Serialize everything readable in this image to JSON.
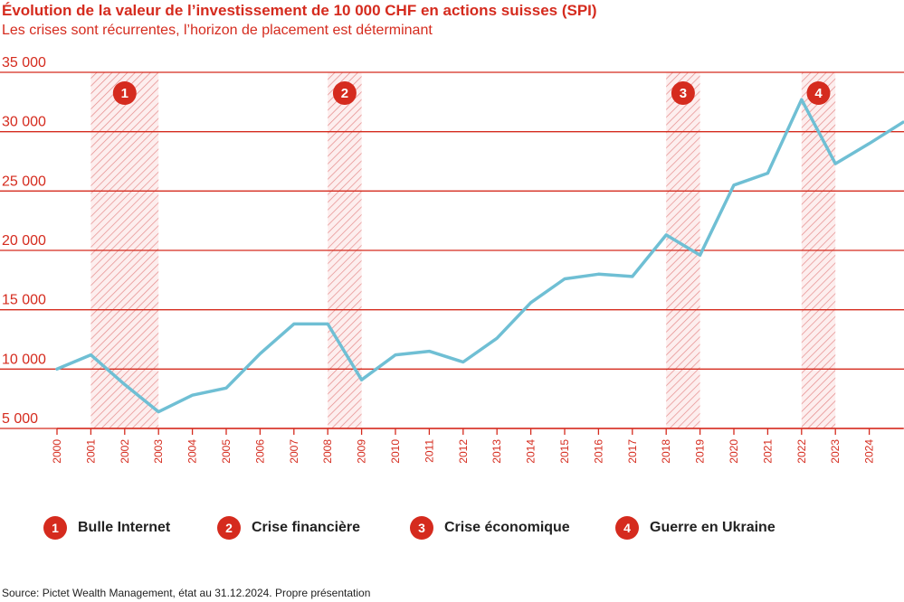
{
  "colors": {
    "accent": "#d52b1e",
    "line": "#6fbfd4",
    "hatch": "#e58a8a"
  },
  "chart_data": {
    "type": "line",
    "title": "Évolution de la valeur de l’investissement de 10 000 CHF en actions suisses (SPI)",
    "subtitle": "Les crises sont récurrentes, l’horizon de placement est déterminant",
    "x_ticks": [
      "2000",
      "2001",
      "2002",
      "2003",
      "2004",
      "2005",
      "2006",
      "2007",
      "2008",
      "2009",
      "2010",
      "2011",
      "2012",
      "2013",
      "2014",
      "2015",
      "2016",
      "2017",
      "2018",
      "2019",
      "2020",
      "2021",
      "2022",
      "2023",
      "2024"
    ],
    "y_ticks": [
      "5 000",
      "10 000",
      "15 000",
      "20 000",
      "25 000",
      "30 000",
      "35 000"
    ],
    "y_tick_values": [
      5000,
      10000,
      15000,
      20000,
      25000,
      30000,
      35000
    ],
    "ylim": [
      5000,
      35000
    ],
    "xlim": [
      2000,
      2025
    ],
    "grid": true,
    "series": [
      {
        "points": [
          [
            2000.0,
            10000
          ],
          [
            2001.0,
            11200
          ],
          [
            2002.0,
            8700
          ],
          [
            2003.0,
            6400
          ],
          [
            2004.0,
            7800
          ],
          [
            2005.0,
            8400
          ],
          [
            2006.0,
            11300
          ],
          [
            2007.0,
            13800
          ],
          [
            2008.0,
            13800
          ],
          [
            2009.0,
            9100
          ],
          [
            2010.0,
            11200
          ],
          [
            2011.0,
            11500
          ],
          [
            2012.0,
            10600
          ],
          [
            2013.0,
            12600
          ],
          [
            2014.0,
            15600
          ],
          [
            2015.0,
            17600
          ],
          [
            2016.0,
            18000
          ],
          [
            2017.0,
            17800
          ],
          [
            2018.0,
            21300
          ],
          [
            2019.0,
            19600
          ],
          [
            2020.0,
            25500
          ],
          [
            2021.0,
            26500
          ],
          [
            2022.0,
            32700
          ],
          [
            2023.0,
            27300
          ],
          [
            2024.0,
            29000
          ],
          [
            2025.0,
            30800
          ]
        ]
      }
    ],
    "crisis_periods": [
      {
        "number": "1",
        "label": "Bulle Internet",
        "start": 2001,
        "end": 2003
      },
      {
        "number": "2",
        "label": "Crise financière",
        "start": 2008,
        "end": 2009
      },
      {
        "number": "3",
        "label": "Crise économique",
        "start": 2018,
        "end": 2019
      },
      {
        "number": "4",
        "label": "Guerre en Ukraine",
        "start": 2022,
        "end": 2023
      }
    ]
  },
  "source": "Source: Pictet Wealth Management, état au 31.12.2024. Propre présentation"
}
